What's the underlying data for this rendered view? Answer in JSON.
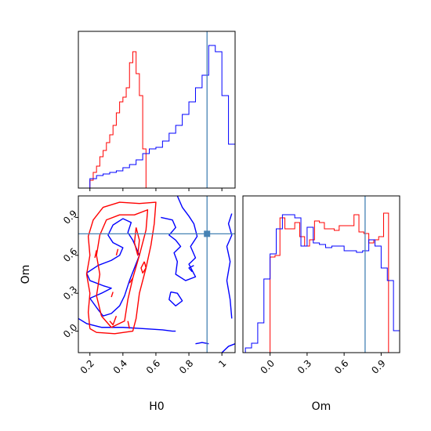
{
  "chart_data": {
    "type": "corner",
    "truths": {
      "H0": 0.91,
      "Om": 0.77
    },
    "colors": {
      "blue": "#0000ff",
      "red": "#ff0000",
      "truth": "#4682b4"
    },
    "panels": [
      {
        "id": "hist-H0",
        "type": "histogram",
        "parameter": "H0",
        "xlim": [
          0.13,
          1.08
        ],
        "ylim": [
          0,
          1.0
        ],
        "xticks": [
          0.2,
          0.4,
          0.6,
          0.8,
          1.0
        ],
        "series": [
          {
            "color": "red",
            "edges": [
              0.2,
              0.22,
              0.24,
              0.26,
              0.28,
              0.3,
              0.32,
              0.34,
              0.36,
              0.38,
              0.4,
              0.42,
              0.44,
              0.46,
              0.48,
              0.5,
              0.52,
              0.54,
              0.56
            ],
            "heights": [
              0.05,
              0.1,
              0.14,
              0.2,
              0.24,
              0.29,
              0.34,
              0.4,
              0.48,
              0.55,
              0.58,
              0.64,
              0.8,
              0.87,
              0.73,
              0.59,
              0.25,
              0.0
            ]
          },
          {
            "color": "blue",
            "edges": [
              0.2,
              0.24,
              0.28,
              0.32,
              0.36,
              0.4,
              0.44,
              0.48,
              0.52,
              0.56,
              0.6,
              0.64,
              0.68,
              0.72,
              0.76,
              0.8,
              0.84,
              0.88,
              0.92,
              0.96,
              1.0,
              1.04,
              1.08
            ],
            "heights": [
              0.06,
              0.08,
              0.09,
              0.1,
              0.11,
              0.13,
              0.15,
              0.18,
              0.22,
              0.25,
              0.26,
              0.3,
              0.35,
              0.4,
              0.47,
              0.55,
              0.64,
              0.72,
              0.91,
              0.87,
              0.59,
              0.28
            ]
          }
        ]
      },
      {
        "id": "hist-Om",
        "type": "histogram",
        "parameter": "Om",
        "xlim": [
          -0.22,
          1.05
        ],
        "ylim": [
          0,
          1.0
        ],
        "xticks": [
          0.0,
          0.3,
          0.6,
          0.9
        ],
        "xtick_labels": [
          "0.0",
          "0.3",
          "0.6",
          "0.9"
        ],
        "series": [
          {
            "color": "red",
            "edges": [
              0.0,
              0.04,
              0.08,
              0.12,
              0.16,
              0.2,
              0.24,
              0.28,
              0.32,
              0.36,
              0.4,
              0.44,
              0.48,
              0.52,
              0.56,
              0.6,
              0.64,
              0.68,
              0.72,
              0.76,
              0.8,
              0.84,
              0.88,
              0.92,
              0.96,
              1.0
            ],
            "heights": [
              0.61,
              0.62,
              0.86,
              0.79,
              0.79,
              0.83,
              0.74,
              0.68,
              0.72,
              0.84,
              0.83,
              0.79,
              0.79,
              0.78,
              0.81,
              0.81,
              0.81,
              0.88,
              0.77,
              0.76,
              0.7,
              0.72,
              0.74,
              0.89,
              0.0
            ]
          },
          {
            "color": "blue",
            "edges": [
              -0.2,
              -0.15,
              -0.1,
              -0.05,
              0.0,
              0.05,
              0.1,
              0.15,
              0.2,
              0.25,
              0.3,
              0.35,
              0.4,
              0.45,
              0.5,
              0.55,
              0.6,
              0.65,
              0.7,
              0.75,
              0.8,
              0.85,
              0.9,
              0.95,
              1.0,
              1.05
            ],
            "heights": [
              0.03,
              0.06,
              0.19,
              0.47,
              0.63,
              0.79,
              0.88,
              0.88,
              0.86,
              0.68,
              0.8,
              0.7,
              0.69,
              0.67,
              0.68,
              0.68,
              0.65,
              0.65,
              0.64,
              0.65,
              0.72,
              0.68,
              0.54,
              0.46,
              0.14
            ]
          }
        ]
      },
      {
        "id": "contour-H0-Om",
        "type": "contour",
        "x_parameter": "H0",
        "y_parameter": "Om",
        "xlim": [
          0.13,
          1.08
        ],
        "ylim": [
          -0.17,
          1.07
        ],
        "xticks": [
          0.2,
          0.4,
          0.6,
          0.8,
          1.0
        ],
        "yticks": [
          0.0,
          0.3,
          0.6,
          0.9
        ],
        "ytick_labels": [
          "0.0",
          "0.3",
          "0.6",
          "0.9"
        ],
        "contours": [
          {
            "color": "blue",
            "points": [
              [
                0.13,
                0.1
              ],
              [
                0.18,
                0.06
              ],
              [
                0.27,
                0.03
              ],
              [
                0.4,
                0.03
              ],
              [
                0.52,
                0.02
              ],
              [
                0.64,
                0.01
              ],
              [
                0.7,
                0.0
              ],
              [
                0.72,
                0.0
              ]
            ]
          },
          {
            "color": "blue",
            "points": [
              [
                0.2,
                0.26
              ],
              [
                0.27,
                0.3
              ],
              [
                0.33,
                0.34
              ],
              [
                0.28,
                0.36
              ],
              [
                0.2,
                0.4
              ],
              [
                0.18,
                0.46
              ],
              [
                0.25,
                0.52
              ],
              [
                0.33,
                0.56
              ],
              [
                0.38,
                0.6
              ],
              [
                0.4,
                0.66
              ],
              [
                0.34,
                0.7
              ],
              [
                0.31,
                0.76
              ],
              [
                0.34,
                0.84
              ],
              [
                0.4,
                0.89
              ],
              [
                0.45,
                0.86
              ],
              [
                0.43,
                0.78
              ],
              [
                0.46,
                0.72
              ],
              [
                0.5,
                0.6
              ],
              [
                0.47,
                0.5
              ],
              [
                0.44,
                0.4
              ],
              [
                0.41,
                0.28
              ],
              [
                0.38,
                0.2
              ],
              [
                0.33,
                0.14
              ],
              [
                0.28,
                0.12
              ],
              [
                0.25,
                0.17
              ],
              [
                0.2,
                0.26
              ]
            ]
          },
          {
            "color": "blue",
            "points": [
              [
                0.63,
                0.9
              ],
              [
                0.7,
                0.88
              ],
              [
                0.72,
                0.82
              ],
              [
                0.68,
                0.76
              ],
              [
                0.72,
                0.72
              ],
              [
                0.75,
                0.67
              ],
              [
                0.71,
                0.62
              ],
              [
                0.73,
                0.55
              ],
              [
                0.72,
                0.45
              ],
              [
                0.78,
                0.4
              ],
              [
                0.84,
                0.43
              ],
              [
                0.8,
                0.53
              ],
              [
                0.84,
                0.58
              ],
              [
                0.81,
                0.67
              ],
              [
                0.85,
                0.75
              ],
              [
                0.83,
                0.85
              ],
              [
                0.8,
                0.91
              ],
              [
                0.76,
                0.98
              ],
              [
                0.73,
                1.07
              ]
            ]
          },
          {
            "color": "blue",
            "points": [
              [
                1.06,
                0.93
              ],
              [
                1.04,
                0.85
              ],
              [
                1.06,
                0.76
              ],
              [
                1.03,
                0.67
              ],
              [
                1.05,
                0.55
              ],
              [
                1.03,
                0.4
              ],
              [
                1.05,
                0.25
              ],
              [
                1.06,
                0.1
              ]
            ]
          },
          {
            "color": "blue",
            "points": [
              [
                0.69,
                0.31
              ],
              [
                0.68,
                0.25
              ],
              [
                0.72,
                0.2
              ],
              [
                0.76,
                0.24
              ],
              [
                0.73,
                0.3
              ],
              [
                0.69,
                0.31
              ]
            ]
          },
          {
            "color": "blue",
            "points": [
              [
                0.82,
                0.47
              ],
              [
                0.8,
                0.5
              ],
              [
                0.83,
                0.52
              ]
            ]
          },
          {
            "color": "blue",
            "points": [
              [
                0.84,
                -0.1
              ],
              [
                0.88,
                -0.09
              ],
              [
                0.92,
                -0.1
              ]
            ]
          },
          {
            "color": "blue",
            "points": [
              [
                1.0,
                -0.17
              ],
              [
                1.04,
                -0.12
              ],
              [
                1.08,
                -0.1
              ]
            ]
          },
          {
            "color": "red",
            "points": [
              [
                0.2,
                0.02
              ],
              [
                0.19,
                0.15
              ],
              [
                0.2,
                0.3
              ],
              [
                0.18,
                0.45
              ],
              [
                0.2,
                0.6
              ],
              [
                0.19,
                0.75
              ],
              [
                0.22,
                0.88
              ],
              [
                0.28,
                0.98
              ],
              [
                0.38,
                1.02
              ],
              [
                0.5,
                1.01
              ],
              [
                0.6,
                1.02
              ],
              [
                0.59,
                0.85
              ],
              [
                0.57,
                0.68
              ],
              [
                0.54,
                0.5
              ],
              [
                0.5,
                0.3
              ],
              [
                0.48,
                0.1
              ],
              [
                0.46,
                0.0
              ],
              [
                0.35,
                -0.02
              ],
              [
                0.24,
                -0.01
              ],
              [
                0.2,
                0.02
              ]
            ]
          },
          {
            "color": "red",
            "points": [
              [
                0.27,
                0.12
              ],
              [
                0.24,
                0.28
              ],
              [
                0.26,
                0.45
              ],
              [
                0.24,
                0.6
              ],
              [
                0.26,
                0.76
              ],
              [
                0.3,
                0.88
              ],
              [
                0.38,
                0.92
              ],
              [
                0.47,
                0.92
              ],
              [
                0.55,
                0.96
              ],
              [
                0.54,
                0.8
              ],
              [
                0.5,
                0.6
              ],
              [
                0.46,
                0.42
              ],
              [
                0.43,
                0.25
              ],
              [
                0.41,
                0.08
              ],
              [
                0.33,
                0.03
              ],
              [
                0.27,
                0.12
              ]
            ]
          },
          {
            "color": "red",
            "points": [
              [
                0.48,
                0.82
              ],
              [
                0.47,
                0.7
              ],
              [
                0.49,
                0.6
              ],
              [
                0.5,
                0.72
              ],
              [
                0.48,
                0.82
              ]
            ]
          },
          {
            "color": "red",
            "points": [
              [
                0.53,
                0.55
              ],
              [
                0.51,
                0.5
              ],
              [
                0.52,
                0.46
              ],
              [
                0.54,
                0.5
              ],
              [
                0.53,
                0.55
              ]
            ]
          },
          {
            "color": "red",
            "points": [
              [
                0.46,
                0.42
              ],
              [
                0.44,
                0.38
              ]
            ]
          },
          {
            "color": "red",
            "points": [
              [
                0.37,
                0.65
              ],
              [
                0.36,
                0.6
              ]
            ]
          },
          {
            "color": "red",
            "points": [
              [
                0.24,
                0.64
              ],
              [
                0.23,
                0.58
              ]
            ]
          },
          {
            "color": "red",
            "points": [
              [
                0.34,
                0.31
              ],
              [
                0.33,
                0.27
              ]
            ]
          },
          {
            "color": "red",
            "points": [
              [
                0.36,
                0.12
              ],
              [
                0.34,
                0.05
              ],
              [
                0.32,
                0.08
              ]
            ]
          },
          {
            "color": "red",
            "points": [
              [
                0.43,
                0.08
              ],
              [
                0.44,
                0.02
              ]
            ]
          }
        ]
      }
    ],
    "axis_labels": {
      "x_left": "H0",
      "x_right": "Om",
      "y_left": "Om"
    }
  }
}
